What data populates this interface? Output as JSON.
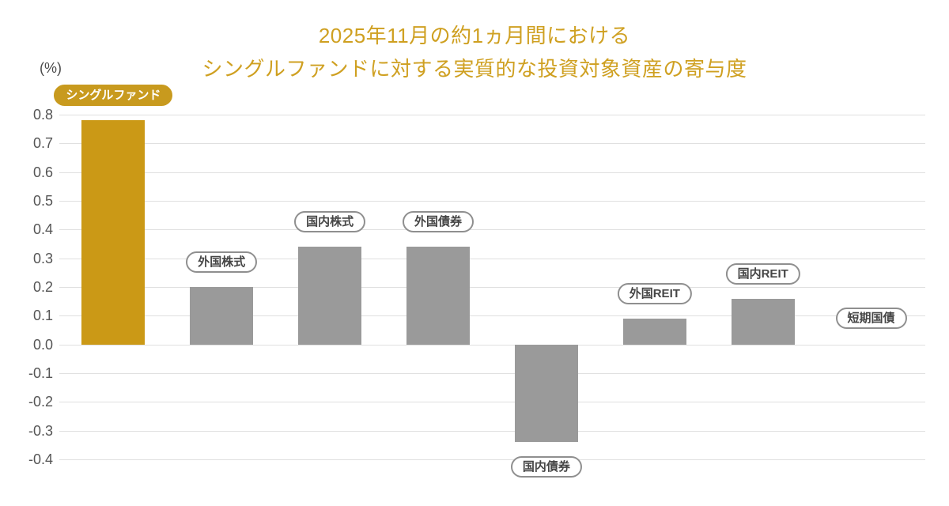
{
  "title": {
    "line1": "2025年11月の約1ヵ月間における",
    "line2": "シングルファンドに対する実質的な投資対象資産の寄与度"
  },
  "axis": {
    "unit": "(%)"
  },
  "colors": {
    "title_text": "#CFA021",
    "highlight_bar": "#CB9916",
    "default_bar": "#9A9A9A",
    "grid_line": "#E0E0E0",
    "tick_text": "#555555",
    "pill_border": "#8F8F8F",
    "pill_text": "#454545",
    "highlight_pill_bg": "#C89A1E",
    "highlight_pill_text": "#FFFFFF"
  },
  "chart_data": {
    "type": "bar",
    "title": "2025年11月の約1ヵ月間における シングルファンドに対する実質的な投資対象資産の寄与度",
    "title_lines": [
      "2025年11月の約1ヵ月間における",
      "シングルファンドに対する実質的な投資対象資産の寄与度"
    ],
    "categories": [
      "シングルファンド",
      "外国株式",
      "国内株式",
      "外国債券",
      "国内債券",
      "外国REIT",
      "国内REIT",
      "短期国債"
    ],
    "keys": [
      "single-fund",
      "foreign-equity",
      "domestic-equity",
      "foreign-bonds",
      "domestic-bonds",
      "foreign-reit",
      "domestic-reit",
      "short-term-gov-bonds"
    ],
    "values": [
      0.78,
      0.2,
      0.34,
      0.34,
      -0.34,
      0.09,
      0.16,
      0.0
    ],
    "highlight_index": 0,
    "xlabel": "",
    "ylabel": "(%)",
    "ylim": [
      -0.4,
      0.8
    ],
    "ytick_step": 0.1,
    "grid": true,
    "legend": false
  }
}
